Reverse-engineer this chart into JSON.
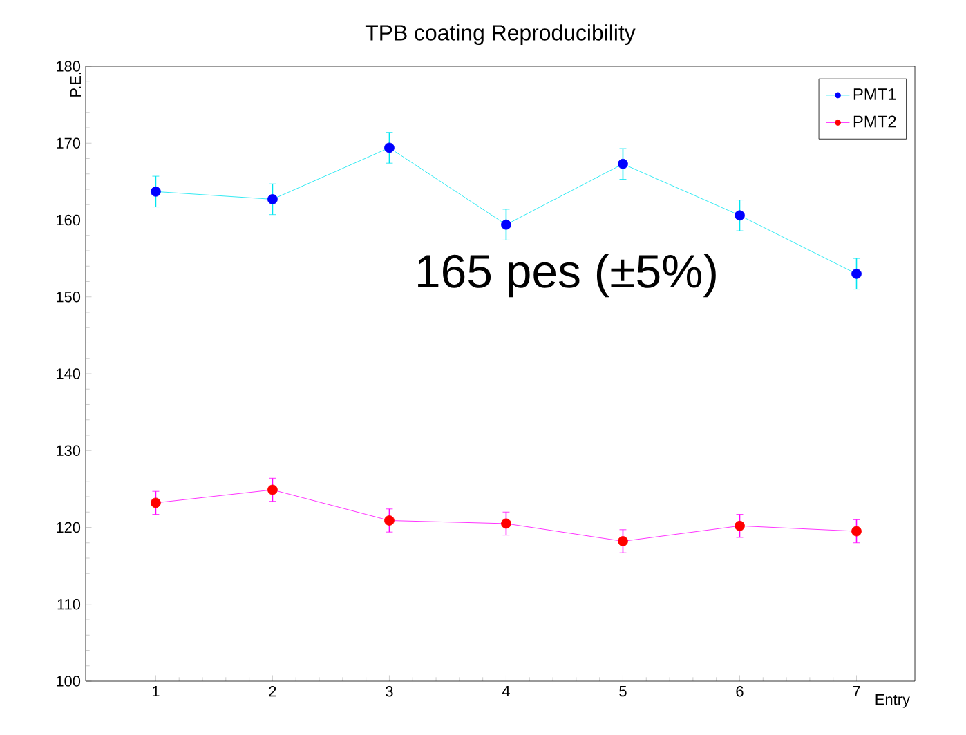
{
  "chart_data": {
    "type": "line",
    "title": "TPB coating Reproducibility",
    "xlabel": "Entry",
    "ylabel": "P.E.",
    "x": [
      1,
      2,
      3,
      4,
      5,
      6,
      7
    ],
    "series": [
      {
        "name": "PMT1",
        "color": "#00e5f0",
        "colors": [
          "#0000ff",
          "#0000ff",
          "#0000ff",
          "#0000ff",
          "#0000ff",
          "#0000ff",
          "#0000ff"
        ],
        "values": [
          163.7,
          162.7,
          169.4,
          159.4,
          167.3,
          160.6,
          153.0
        ],
        "errors": [
          2,
          2,
          2,
          2,
          2,
          2,
          2
        ]
      },
      {
        "name": "PMT2",
        "color": "#ff00ff",
        "colors": [
          "#ff0000",
          "#ff0000",
          "#ff0000",
          "#ff0000",
          "#ff0000",
          "#ff0000",
          "#ff0000"
        ],
        "values": [
          123.2,
          124.9,
          120.9,
          120.5,
          118.2,
          120.2,
          119.5
        ],
        "errors": [
          1.5,
          1.5,
          1.5,
          1.5,
          1.5,
          1.5,
          1.5
        ]
      }
    ],
    "annotations": [
      "165 pes (±5%)"
    ],
    "xlim": [
      0.4,
      7.5
    ],
    "xticks": [
      1,
      2,
      3,
      4,
      5,
      6,
      7
    ],
    "ylim": [
      100,
      180
    ],
    "yticks": [
      100,
      110,
      120,
      130,
      140,
      150,
      160,
      170,
      180
    ],
    "marker": "circle",
    "line_style": "solid",
    "legend": "top right",
    "grid": false
  }
}
